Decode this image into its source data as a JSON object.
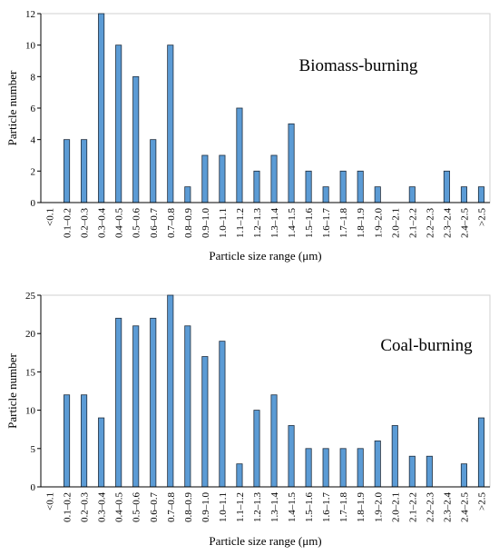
{
  "chart_data": [
    {
      "type": "bar",
      "annotation": "Biomass-burning",
      "xlabel": "Particle size range (μm)",
      "ylabel": "Particle number",
      "categories": [
        "<0.1",
        "0.1–0.2",
        "0.2–0.3",
        "0.3–0.4",
        "0.4–0.5",
        "0.5–0.6",
        "0.6–0.7",
        "0.7–0.8",
        "0.8–0.9",
        "0.9–1.0",
        "1.0–1.1",
        "1.1–1.2",
        "1.2–1.3",
        "1.3–1.4",
        "1.4–1.5",
        "1.5–1.6",
        "1.6–1.7",
        "1.7–1.8",
        "1.8–1.9",
        "1.9–2.0",
        "2.0–2.1",
        "2.1–2.2",
        "2.2–2.3",
        "2.3–2.4",
        "2.4–2.5",
        ">2.5"
      ],
      "values": [
        0,
        4,
        4,
        12,
        10,
        8,
        4,
        10,
        1,
        3,
        3,
        6,
        2,
        3,
        5,
        2,
        1,
        2,
        2,
        1,
        0,
        1,
        0,
        2,
        1,
        1
      ],
      "color": "#5b9bd5",
      "ylim": [
        0,
        12
      ],
      "yticks": [
        0,
        2,
        4,
        6,
        8,
        10,
        12
      ]
    },
    {
      "type": "bar",
      "annotation": "Coal-burning",
      "xlabel": "Particle size range (μm)",
      "ylabel": "Particle number",
      "categories": [
        "<0.1",
        "0.1–0.2",
        "0.2–0.3",
        "0.3–0.4",
        "0.4–0.5",
        "0.5–0.6",
        "0.6–0.7",
        "0.7–0.8",
        "0.8–0.9",
        "0.9–1.0",
        "1.0–1.1",
        "1.1–1.2",
        "1.2–1.3",
        "1.3–1.4",
        "1.4–1.5",
        "1.5–1.6",
        "1.6–1.7",
        "1.7–1.8",
        "1.8–1.9",
        "1.9–2.0",
        "2.0–2.1",
        "2.1–2.2",
        "2.2–2.3",
        "2.3–2.4",
        "2.4–2.5",
        ">2.5"
      ],
      "values": [
        0,
        12,
        12,
        9,
        22,
        21,
        22,
        25,
        21,
        17,
        19,
        3,
        10,
        12,
        8,
        5,
        5,
        5,
        5,
        6,
        8,
        4,
        4,
        0,
        3,
        9
      ],
      "color": "#5b9bd5",
      "ylim": [
        0,
        25
      ],
      "yticks": [
        0,
        5,
        10,
        15,
        20,
        25
      ]
    }
  ]
}
